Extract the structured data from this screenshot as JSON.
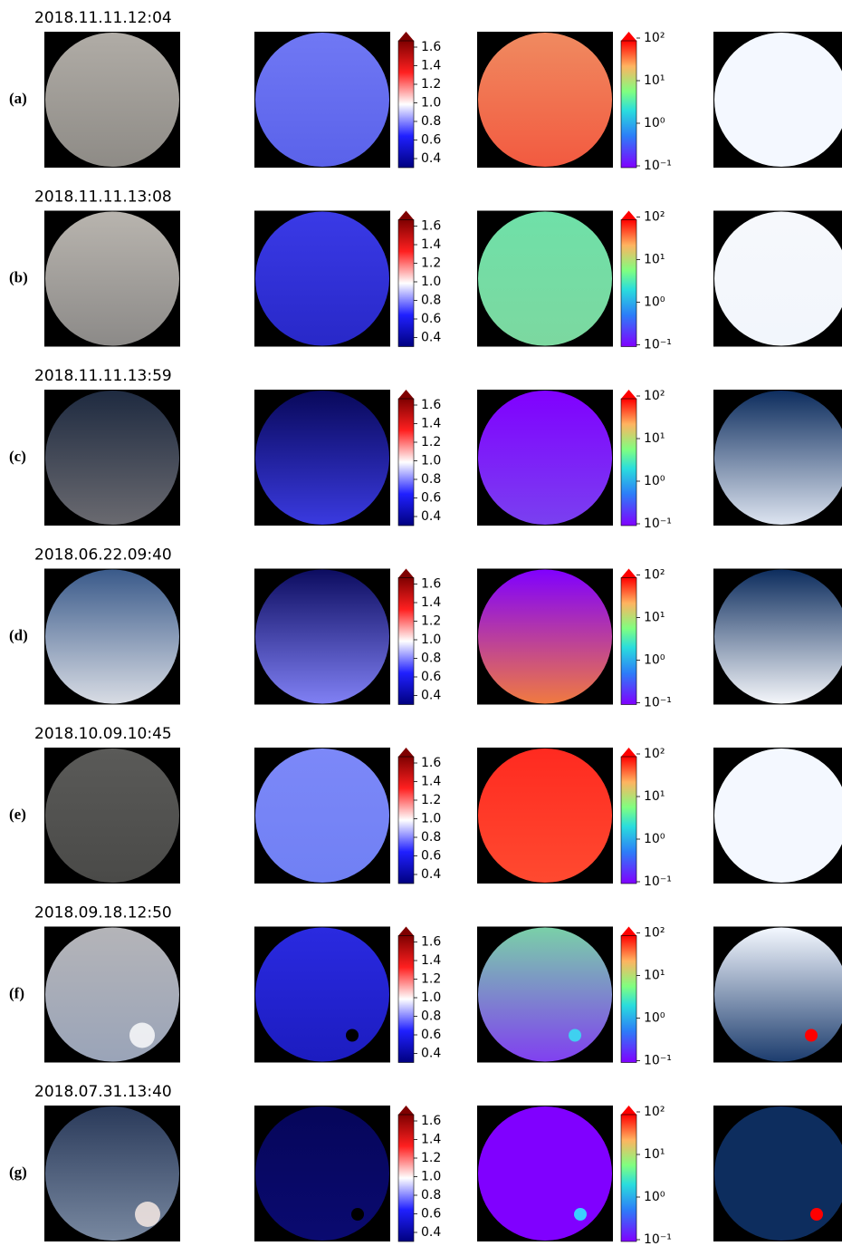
{
  "rows": [
    {
      "label": "(a)",
      "timestamp": "2018.11.11.12:04"
    },
    {
      "label": "(b)",
      "timestamp": "2018.11.11.13:08"
    },
    {
      "label": "(c)",
      "timestamp": "2018.11.11.13:59"
    },
    {
      "label": "(d)",
      "timestamp": "2018.06.22.09:40"
    },
    {
      "label": "(e)",
      "timestamp": "2018.10.09.10:45"
    },
    {
      "label": "(f)",
      "timestamp": "2018.09.18.12:50"
    },
    {
      "label": "(g)",
      "timestamp": "2018.07.31.13:40"
    }
  ],
  "ratio_colorbar": {
    "ticks": [
      "1.6",
      "1.4",
      "1.2",
      "1.0",
      "0.8",
      "0.6",
      "0.4"
    ]
  },
  "log_colorbar": {
    "ticks": [
      "10²",
      "10¹",
      "10⁰",
      "10⁻¹"
    ]
  }
}
